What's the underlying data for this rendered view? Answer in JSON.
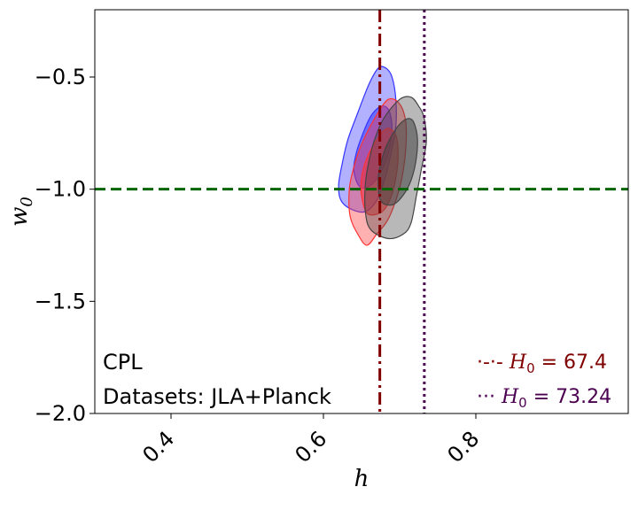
{
  "chart_data": {
    "type": "contour",
    "xlabel": "h",
    "ylabel_base": "w",
    "ylabel_sub": "0",
    "xlim": [
      0.3,
      1.0
    ],
    "ylim": [
      -2.0,
      -0.2
    ],
    "xticks": [
      {
        "value": 0.4,
        "label": "0.4"
      },
      {
        "value": 0.6,
        "label": "0.6"
      },
      {
        "value": 0.8,
        "label": "0.8"
      }
    ],
    "yticks": [
      {
        "value": -0.5,
        "label": "−0.5"
      },
      {
        "value": -1.0,
        "label": "−1.0"
      },
      {
        "value": -1.5,
        "label": "−1.5"
      },
      {
        "value": -2.0,
        "label": "−2.0"
      }
    ],
    "grid": false,
    "annotations": [
      "CPL",
      "Datasets: JLA+Planck"
    ],
    "reference_lines": [
      {
        "orientation": "vertical",
        "value": 0.674,
        "style": "dashdot",
        "color": "#800000",
        "legend_marker": "·-·-",
        "legend_base": "H",
        "legend_sub": "0",
        "legend_rest": " = 67.4"
      },
      {
        "orientation": "vertical",
        "value": 0.7324,
        "style": "dotted",
        "color": "#4b0050",
        "legend_marker": "···",
        "legend_base": "H",
        "legend_sub": "0",
        "legend_rest": " = 73.24"
      },
      {
        "orientation": "horizontal",
        "value": -1.0,
        "style": "dashed",
        "color": "#006400"
      }
    ],
    "legend_placement": "lower-right",
    "contours": [
      {
        "color": "#3333ff",
        "level": "outer",
        "points": [
          [
            0.637,
            -1.09
          ],
          [
            0.623,
            -1.05
          ],
          [
            0.62,
            -0.98
          ],
          [
            0.625,
            -0.88
          ],
          [
            0.632,
            -0.78
          ],
          [
            0.645,
            -0.66
          ],
          [
            0.66,
            -0.53
          ],
          [
            0.672,
            -0.46
          ],
          [
            0.682,
            -0.46
          ],
          [
            0.69,
            -0.5
          ],
          [
            0.695,
            -0.6
          ],
          [
            0.695,
            -0.72
          ],
          [
            0.688,
            -0.85
          ],
          [
            0.68,
            -0.96
          ],
          [
            0.67,
            -1.05
          ],
          [
            0.655,
            -1.1
          ],
          [
            0.637,
            -1.09
          ]
        ]
      },
      {
        "color": "#3333ff",
        "level": "inner",
        "points": [
          [
            0.648,
            -0.99
          ],
          [
            0.64,
            -0.92
          ],
          [
            0.643,
            -0.84
          ],
          [
            0.652,
            -0.75
          ],
          [
            0.663,
            -0.67
          ],
          [
            0.676,
            -0.63
          ],
          [
            0.686,
            -0.65
          ],
          [
            0.69,
            -0.73
          ],
          [
            0.686,
            -0.83
          ],
          [
            0.676,
            -0.92
          ],
          [
            0.663,
            -0.98
          ],
          [
            0.648,
            -0.99
          ]
        ]
      },
      {
        "color": "#ff3333",
        "level": "outer",
        "points": [
          [
            0.645,
            -1.2
          ],
          [
            0.635,
            -1.12
          ],
          [
            0.634,
            -1.0
          ],
          [
            0.64,
            -0.9
          ],
          [
            0.65,
            -0.8
          ],
          [
            0.668,
            -0.68
          ],
          [
            0.685,
            -0.6
          ],
          [
            0.7,
            -0.62
          ],
          [
            0.708,
            -0.7
          ],
          [
            0.708,
            -0.82
          ],
          [
            0.703,
            -0.95
          ],
          [
            0.695,
            -1.05
          ],
          [
            0.684,
            -1.14
          ],
          [
            0.67,
            -1.2
          ],
          [
            0.657,
            -1.25
          ],
          [
            0.645,
            -1.2
          ]
        ]
      },
      {
        "color": "#ff3333",
        "level": "inner",
        "points": [
          [
            0.658,
            -1.11
          ],
          [
            0.65,
            -1.03
          ],
          [
            0.65,
            -0.95
          ],
          [
            0.656,
            -0.87
          ],
          [
            0.668,
            -0.79
          ],
          [
            0.683,
            -0.73
          ],
          [
            0.695,
            -0.76
          ],
          [
            0.698,
            -0.85
          ],
          [
            0.695,
            -0.95
          ],
          [
            0.688,
            -1.04
          ],
          [
            0.677,
            -1.1
          ],
          [
            0.658,
            -1.11
          ]
        ]
      },
      {
        "color": "#444444",
        "level": "outer",
        "points": [
          [
            0.662,
            -1.18
          ],
          [
            0.655,
            -1.1
          ],
          [
            0.655,
            -0.98
          ],
          [
            0.66,
            -0.87
          ],
          [
            0.668,
            -0.77
          ],
          [
            0.68,
            -0.68
          ],
          [
            0.7,
            -0.6
          ],
          [
            0.715,
            -0.59
          ],
          [
            0.725,
            -0.63
          ],
          [
            0.732,
            -0.68
          ],
          [
            0.735,
            -0.79
          ],
          [
            0.728,
            -0.92
          ],
          [
            0.722,
            -1.03
          ],
          [
            0.715,
            -1.15
          ],
          [
            0.705,
            -1.2
          ],
          [
            0.685,
            -1.22
          ],
          [
            0.662,
            -1.18
          ]
        ]
      },
      {
        "color": "#444444",
        "level": "inner",
        "points": [
          [
            0.675,
            -1.05
          ],
          [
            0.672,
            -0.95
          ],
          [
            0.678,
            -0.85
          ],
          [
            0.688,
            -0.77
          ],
          [
            0.703,
            -0.7
          ],
          [
            0.716,
            -0.69
          ],
          [
            0.723,
            -0.76
          ],
          [
            0.722,
            -0.86
          ],
          [
            0.715,
            -0.96
          ],
          [
            0.704,
            -1.03
          ],
          [
            0.69,
            -1.07
          ],
          [
            0.675,
            -1.05
          ]
        ]
      }
    ]
  }
}
